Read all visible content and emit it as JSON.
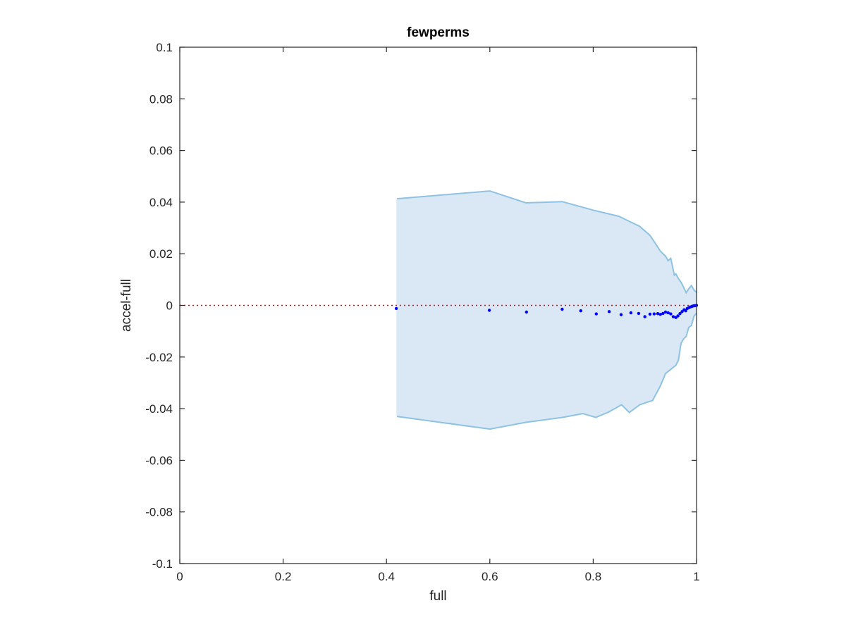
{
  "chart_data": {
    "type": "scatter",
    "title": "fewperms",
    "xlabel": "full",
    "ylabel": "accel-full",
    "xlim": [
      0,
      1
    ],
    "ylim": [
      -0.1,
      0.1
    ],
    "x_ticks": [
      0,
      0.2,
      0.4,
      0.6,
      0.8,
      1
    ],
    "x_tick_labels": [
      "0",
      "0.2",
      "0.4",
      "0.6",
      "0.8",
      "1"
    ],
    "y_ticks": [
      0.1,
      0.08,
      0.06,
      0.04,
      0.02,
      0,
      -0.02,
      -0.04,
      -0.06,
      -0.08,
      -0.1
    ],
    "y_tick_labels": [
      "0.1",
      "0.08",
      "0.06",
      "0.04",
      "0.02",
      "0",
      "-0.02",
      "-0.04",
      "-0.06",
      "-0.08",
      "-0.1"
    ],
    "grid": false,
    "reference_line": {
      "y": 0,
      "style": "dotted",
      "color": "#ff0000"
    },
    "band": {
      "upper": [
        [
          0.42,
          0.0413
        ],
        [
          0.6,
          0.0443
        ],
        [
          0.67,
          0.0397
        ],
        [
          0.74,
          0.0402
        ],
        [
          0.8,
          0.0369
        ],
        [
          0.85,
          0.0345
        ],
        [
          0.89,
          0.0306
        ],
        [
          0.91,
          0.0271
        ],
        [
          0.92,
          0.0241
        ],
        [
          0.93,
          0.021
        ],
        [
          0.94,
          0.0191
        ],
        [
          0.945,
          0.0173
        ],
        [
          0.95,
          0.0182
        ],
        [
          0.953,
          0.0156
        ],
        [
          0.957,
          0.0117
        ],
        [
          0.96,
          0.0122
        ],
        [
          0.965,
          0.0104
        ],
        [
          0.97,
          0.009
        ],
        [
          0.975,
          0.007
        ],
        [
          0.98,
          0.0049
        ],
        [
          0.985,
          0.0065
        ],
        [
          0.99,
          0.0077
        ],
        [
          0.995,
          0.006
        ],
        [
          1.0,
          0.005
        ]
      ],
      "lower": [
        [
          0.42,
          -0.043
        ],
        [
          0.6,
          -0.0479
        ],
        [
          0.67,
          -0.0453
        ],
        [
          0.74,
          -0.0434
        ],
        [
          0.78,
          -0.0419
        ],
        [
          0.805,
          -0.0434
        ],
        [
          0.83,
          -0.0413
        ],
        [
          0.855,
          -0.0385
        ],
        [
          0.87,
          -0.0415
        ],
        [
          0.89,
          -0.0385
        ],
        [
          0.915,
          -0.0368
        ],
        [
          0.93,
          -0.0312
        ],
        [
          0.94,
          -0.0264
        ],
        [
          0.95,
          -0.0248
        ],
        [
          0.96,
          -0.0232
        ],
        [
          0.965,
          -0.0212
        ],
        [
          0.97,
          -0.0147
        ],
        [
          0.975,
          -0.013
        ],
        [
          0.98,
          -0.012
        ],
        [
          0.985,
          -0.0085
        ],
        [
          0.99,
          -0.0078
        ],
        [
          0.995,
          -0.0042
        ],
        [
          1.0,
          -0.003
        ]
      ],
      "fill": "#d9e8f4",
      "stroke": "#8ec2e3"
    },
    "series": [
      {
        "color": "#0000ff",
        "points": [
          [
            0.419,
            -0.0012
          ],
          [
            0.599,
            -0.0019
          ],
          [
            0.671,
            -0.0026
          ],
          [
            0.74,
            -0.0015
          ],
          [
            0.776,
            -0.0021
          ],
          [
            0.806,
            -0.0033
          ],
          [
            0.831,
            -0.0024
          ],
          [
            0.854,
            -0.0036
          ],
          [
            0.873,
            -0.0029
          ],
          [
            0.888,
            -0.0031
          ],
          [
            0.9,
            -0.0044
          ],
          [
            0.91,
            -0.0034
          ],
          [
            0.918,
            -0.0033
          ],
          [
            0.925,
            -0.0032
          ],
          [
            0.93,
            -0.0035
          ],
          [
            0.935,
            -0.0031
          ],
          [
            0.94,
            -0.0026
          ],
          [
            0.945,
            -0.0029
          ],
          [
            0.95,
            -0.0033
          ],
          [
            0.955,
            -0.0044
          ],
          [
            0.96,
            -0.0047
          ],
          [
            0.964,
            -0.0041
          ],
          [
            0.968,
            -0.0032
          ],
          [
            0.972,
            -0.0024
          ],
          [
            0.976,
            -0.0017
          ],
          [
            0.979,
            -0.0021
          ],
          [
            0.982,
            -0.0012
          ],
          [
            0.985,
            -0.0009
          ],
          [
            0.988,
            -0.0006
          ],
          [
            0.991,
            -0.0004
          ],
          [
            0.994,
            -0.0002
          ],
          [
            0.997,
            -0.0001
          ],
          [
            1.0,
            0.0
          ]
        ]
      }
    ]
  }
}
